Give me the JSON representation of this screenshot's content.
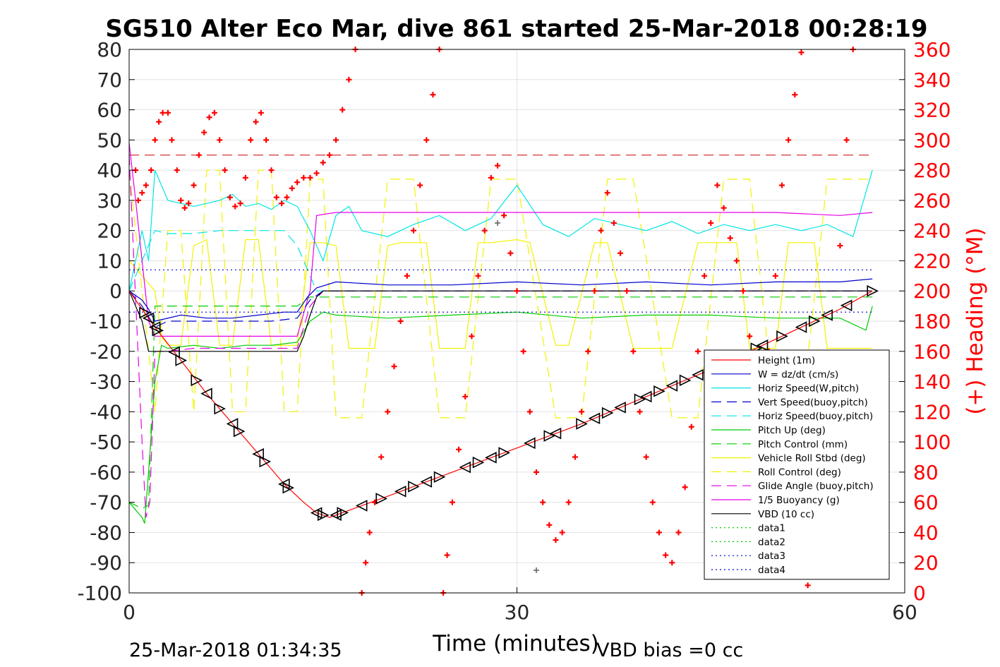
{
  "chart_data": {
    "type": "line",
    "title": "SG510 Alter Eco Mar, dive 861 started 25-Mar-2018 00:28:19",
    "xlabel": "Time (minutes)",
    "ylabel_right": "(+) Heading (°M)",
    "xlim": [
      0,
      60
    ],
    "ylim": [
      -100,
      80
    ],
    "ylim_right": [
      0,
      360
    ],
    "x_ticks": [
      "0",
      "30",
      "60"
    ],
    "y_ticks": [
      "80",
      "70",
      "60",
      "50",
      "40",
      "30",
      "20",
      "10",
      "0",
      "-10",
      "-20",
      "-30",
      "-40",
      "-50",
      "-60",
      "-70",
      "-80",
      "-90",
      "-100"
    ],
    "y_ticks_right": [
      "360",
      "340",
      "320",
      "300",
      "280",
      "260",
      "240",
      "220",
      "200",
      "180",
      "160",
      "140",
      "120",
      "100",
      "80",
      "60",
      "40",
      "20",
      "0"
    ],
    "grid": true,
    "legend_position": "lower-right",
    "colors": {
      "height": "#ff0000",
      "w": "#0000cc",
      "horiz": "#00e5e5",
      "green": "#00cc00",
      "yellow": "#f2f200",
      "magenta": "#e600e6",
      "black": "#000000",
      "heading": "#ff0000",
      "heading_ref": "#cc0000",
      "right_axis": "#ff0000"
    },
    "series": [
      {
        "name": "Height (1m)",
        "style": "solid",
        "color": "#ff0000",
        "x": [
          0,
          1,
          2,
          4,
          6,
          8,
          10,
          12,
          13.5,
          14.5,
          15.5,
          20,
          25,
          30,
          35,
          40,
          45,
          50,
          55,
          57.5
        ],
        "y": [
          0,
          -6,
          -12,
          -23,
          -34,
          -44,
          -54,
          -64,
          -70,
          -73.5,
          -75,
          -68,
          -60,
          -52,
          -44,
          -35,
          -26,
          -16,
          -6,
          0
        ]
      },
      {
        "name": "W = dz/dt (cm/s)",
        "style": "solid",
        "color": "#0000cc",
        "x": [
          0,
          1,
          1.5,
          2,
          4,
          6,
          8,
          10,
          12,
          13,
          13.8,
          14.5,
          16,
          20,
          25,
          30,
          35,
          40,
          45,
          50,
          55,
          57.5
        ],
        "y": [
          0,
          -3,
          -6,
          -10,
          -8,
          -9,
          -9,
          -8,
          -7,
          -7,
          -2,
          1,
          3,
          2,
          2,
          3,
          2,
          3,
          2,
          3,
          3,
          4
        ]
      },
      {
        "name": "Horiz Speed(W,pitch)",
        "style": "solid",
        "color": "#00e5e5",
        "x": [
          0,
          1,
          1.5,
          2,
          3,
          5,
          7,
          8,
          9,
          10,
          11,
          12,
          13,
          14,
          15,
          16,
          17,
          18,
          20,
          22,
          24,
          26,
          28,
          30,
          32,
          34,
          36,
          38,
          40,
          42,
          44,
          46,
          48,
          50,
          52,
          54,
          56,
          57.5
        ],
        "y": [
          0,
          20,
          10,
          40,
          30,
          28,
          30,
          32,
          28,
          29,
          27,
          30,
          28,
          20,
          10,
          25,
          28,
          20,
          18,
          22,
          25,
          20,
          24,
          35,
          22,
          18,
          24,
          22,
          20,
          23,
          19,
          22,
          20,
          22,
          20,
          22,
          18,
          40
        ]
      },
      {
        "name": "Vert Speed(buoy,pitch)",
        "style": "dash",
        "color": "#0000cc",
        "x": [
          0,
          1,
          2,
          3,
          5,
          7,
          9,
          11,
          13,
          14,
          15,
          20,
          25,
          30,
          35,
          40,
          45,
          50,
          55,
          57.5
        ],
        "y": [
          0,
          -5,
          -12,
          -10,
          -10,
          -10,
          -10,
          -10,
          -9,
          -3,
          0,
          0,
          0,
          0,
          0,
          0,
          0,
          0,
          0,
          0
        ]
      },
      {
        "name": "Horiz Speed(buoy,pitch)",
        "style": "dash",
        "color": "#00e5e5",
        "x": [
          0,
          1,
          2,
          3,
          5,
          7,
          9,
          11,
          12,
          13,
          14,
          14.5,
          15
        ],
        "y": [
          0,
          10,
          20,
          19,
          19,
          20,
          20,
          20,
          20,
          15,
          5,
          0,
          0
        ]
      },
      {
        "name": "Pitch Up (deg)",
        "style": "solid",
        "color": "#00cc00",
        "x": [
          0,
          1,
          1.2,
          1.5,
          2,
          2.5,
          3,
          5,
          7,
          9,
          11,
          13,
          14,
          15,
          16,
          20,
          25,
          30,
          35,
          40,
          45,
          50,
          55,
          57,
          57.5
        ],
        "y": [
          -70,
          -75,
          -77,
          -60,
          -30,
          -18,
          -19,
          -18,
          -19,
          -18,
          -18,
          -17,
          -10,
          -7,
          -8,
          -9,
          -8,
          -7,
          -9,
          -8,
          -8,
          -9,
          -9,
          -13,
          -5
        ]
      },
      {
        "name": "Pitch Control (mm)",
        "style": "dash",
        "color": "#00cc00",
        "x": [
          0,
          1,
          1.5,
          2,
          4,
          6,
          8,
          10,
          12,
          13,
          14,
          16,
          20,
          30,
          40,
          50,
          57.5
        ],
        "y": [
          -70,
          -72,
          -71,
          -5,
          -5,
          -5,
          -5,
          -5,
          -5,
          -5,
          -2,
          -2,
          -2,
          -2,
          -2,
          -2,
          -2
        ]
      },
      {
        "name": "Vehicle Roll Stbd (deg)",
        "style": "solid",
        "color": "#f2f200",
        "x": [
          0,
          2,
          2.5,
          3,
          4,
          5,
          6,
          7,
          8,
          9,
          10,
          11,
          12,
          13,
          14,
          15,
          16,
          17,
          18,
          19,
          20,
          21,
          23,
          24,
          26,
          27,
          28,
          30,
          31,
          33,
          34,
          36,
          37,
          39,
          40,
          42,
          44,
          45,
          47,
          48,
          50,
          51,
          53,
          54,
          56,
          57.5
        ],
        "y": [
          10,
          0,
          -15,
          -18,
          -18,
          15,
          17,
          -18,
          -18,
          17,
          17,
          -18,
          -18,
          -18,
          16,
          16,
          15,
          -19,
          -19,
          -19,
          15,
          16,
          16,
          -19,
          -19,
          16,
          16,
          17,
          16,
          -18,
          -18,
          16,
          16,
          -19,
          -19,
          -19,
          16,
          16,
          16,
          -19,
          -19,
          16,
          16,
          -19,
          -19,
          -19
        ]
      },
      {
        "name": "Roll Control (deg)",
        "style": "dash",
        "color": "#f2f200",
        "x": [
          0,
          2,
          3,
          4,
          5,
          6,
          7,
          8,
          9,
          10,
          11,
          12,
          13,
          14,
          15,
          16,
          18,
          20,
          22,
          24,
          26,
          28,
          30,
          33,
          35,
          37,
          39,
          42,
          44,
          46,
          48,
          50,
          52,
          54,
          56,
          57.5
        ],
        "y": [
          40,
          -40,
          20,
          20,
          -40,
          40,
          40,
          -40,
          -40,
          40,
          40,
          -40,
          -40,
          37,
          37,
          -42,
          -42,
          37,
          37,
          -42,
          -42,
          37,
          37,
          -42,
          -42,
          37,
          37,
          -42,
          -42,
          37,
          37,
          -42,
          -42,
          37,
          37,
          37
        ]
      },
      {
        "name": "Glide Angle (buoy,pitch)",
        "style": "dash",
        "color": "#e600e6",
        "x": [
          0,
          1,
          1.3,
          1.6,
          2,
          3,
          5,
          7,
          9,
          11,
          13,
          14,
          15,
          16,
          20,
          30,
          40,
          50,
          57.5
        ],
        "y": [
          45,
          -50,
          -75,
          -70,
          -20,
          -20,
          -19,
          -19,
          -19,
          -19,
          -19,
          -5,
          0,
          0,
          0,
          0,
          0,
          0,
          0
        ]
      },
      {
        "name": "1/5 Buoyancy (g)",
        "style": "solid",
        "color": "#e600e6",
        "x": [
          0,
          0.5,
          1,
          1.5,
          2,
          3,
          6,
          9,
          12,
          13,
          14,
          14.5,
          16,
          20,
          30,
          40,
          50,
          55,
          57.5
        ],
        "y": [
          49,
          30,
          10,
          -10,
          -15,
          -15,
          -15,
          -15,
          -15,
          -15,
          0,
          25,
          26,
          26,
          26,
          26,
          26,
          25,
          26
        ]
      },
      {
        "name": "VBD (10 cc)",
        "style": "solid",
        "color": "#000000",
        "x": [
          0,
          1,
          1.5,
          2,
          4,
          6,
          8,
          10,
          12,
          13,
          13.5,
          14,
          14.5,
          15,
          20,
          30,
          40,
          50,
          57.5
        ],
        "y": [
          0,
          -10,
          -20,
          -20,
          -20,
          -20,
          -20,
          -20,
          -20,
          -20,
          -15,
          -8,
          -2,
          0,
          0,
          0,
          0,
          0,
          0
        ]
      },
      {
        "name": "data1",
        "style": "dot",
        "color": "#00cc00",
        "x": [],
        "y": []
      },
      {
        "name": "data2",
        "style": "dot",
        "color": "#00cc00",
        "x": [],
        "y": []
      },
      {
        "name": "data3",
        "style": "dot",
        "color": "#0000cc",
        "x": [
          0,
          57.5
        ],
        "y": [
          7,
          7
        ]
      },
      {
        "name": "data4",
        "style": "dot",
        "color": "#0000cc",
        "x": [
          0,
          57.5
        ],
        "y": [
          -7,
          -7
        ]
      }
    ],
    "heading_reference": {
      "y_right": 290,
      "x": [
        0,
        57.5
      ]
    },
    "heading_series": {
      "x": [
        0.5,
        0.7,
        1,
        1.3,
        1.7,
        2,
        2.3,
        2.6,
        3,
        3.3,
        3.7,
        4,
        4.3,
        4.6,
        5,
        5.4,
        5.8,
        6.2,
        6.6,
        7,
        7.4,
        7.8,
        8.2,
        8.6,
        9,
        9.4,
        9.8,
        10.2,
        10.6,
        11,
        11.4,
        11.8,
        12.2,
        12.6,
        13,
        13.5,
        14,
        14.5,
        15,
        15.5,
        16,
        16.5,
        17,
        17.5,
        18,
        18.3,
        18.6,
        19,
        19.5,
        20,
        20.5,
        21,
        21.5,
        22,
        22.5,
        23,
        23.5,
        24,
        24.3,
        24.6,
        25,
        25.5,
        26,
        26.5,
        27,
        27.5,
        28,
        28.5,
        29,
        29.5,
        30,
        30.5,
        31,
        31.5,
        32,
        32.5,
        33,
        33.5,
        34,
        34.5,
        35,
        35.5,
        36,
        36.5,
        37,
        37.5,
        38,
        38.5,
        39,
        39.5,
        40,
        40.5,
        41,
        41.5,
        42,
        42.5,
        43,
        43.5,
        44,
        44.5,
        45,
        45.5,
        46,
        46.5,
        47,
        47.5,
        48,
        48.5,
        49,
        49.5,
        50,
        50.5,
        51,
        51.5,
        52,
        52.5,
        53,
        53.5,
        54,
        54.5,
        55,
        55.5,
        56
      ],
      "y": [
        280,
        260,
        265,
        270,
        280,
        300,
        312,
        318,
        318,
        300,
        280,
        260,
        255,
        258,
        270,
        290,
        305,
        315,
        318,
        300,
        280,
        262,
        256,
        258,
        275,
        300,
        312,
        318,
        300,
        280,
        262,
        258,
        262,
        268,
        272,
        275,
        275,
        278,
        285,
        290,
        300,
        320,
        340,
        360,
        0,
        20,
        40,
        60,
        90,
        120,
        150,
        180,
        210,
        240,
        270,
        300,
        330,
        360,
        0,
        25,
        60,
        95,
        130,
        170,
        210,
        240,
        275,
        283,
        250,
        225,
        200,
        160,
        120,
        80,
        60,
        45,
        35,
        40,
        60,
        90,
        120,
        160,
        200,
        240,
        265,
        245,
        225,
        200,
        160,
        120,
        90,
        60,
        40,
        25,
        20,
        40,
        70,
        110,
        160,
        210,
        245,
        270,
        255,
        235,
        220,
        200,
        170,
        140,
        120,
        160,
        210,
        270,
        300,
        330,
        358,
        5,
        30,
        60,
        90,
        150,
        230,
        300,
        360
      ]
    },
    "heading_cross_markers": [
      {
        "x": 28.5,
        "y_right": 245
      },
      {
        "x": 31.5,
        "y_right": 15
      }
    ],
    "surfacing_markers": {
      "left_pointing_x": [
        1.5,
        2,
        3.5,
        6,
        8,
        10,
        12,
        14.5,
        16,
        18,
        21,
        23,
        26,
        28,
        31,
        33,
        36,
        38,
        40,
        42,
        44,
        45.5,
        47,
        49,
        52,
        54,
        55.5
      ],
      "right_pointing_x": [
        1.2,
        2.2,
        4,
        5.2,
        7,
        8.5,
        10.5,
        12.3,
        15,
        16.5,
        19.5,
        22,
        24,
        27,
        29,
        32.5,
        35,
        37,
        39.5,
        41,
        43,
        46,
        48.5,
        50.5,
        53,
        57.5
      ]
    },
    "footer_left": "25-Mar-2018 01:34:35",
    "footer_right": "VBD bias =0 cc"
  }
}
